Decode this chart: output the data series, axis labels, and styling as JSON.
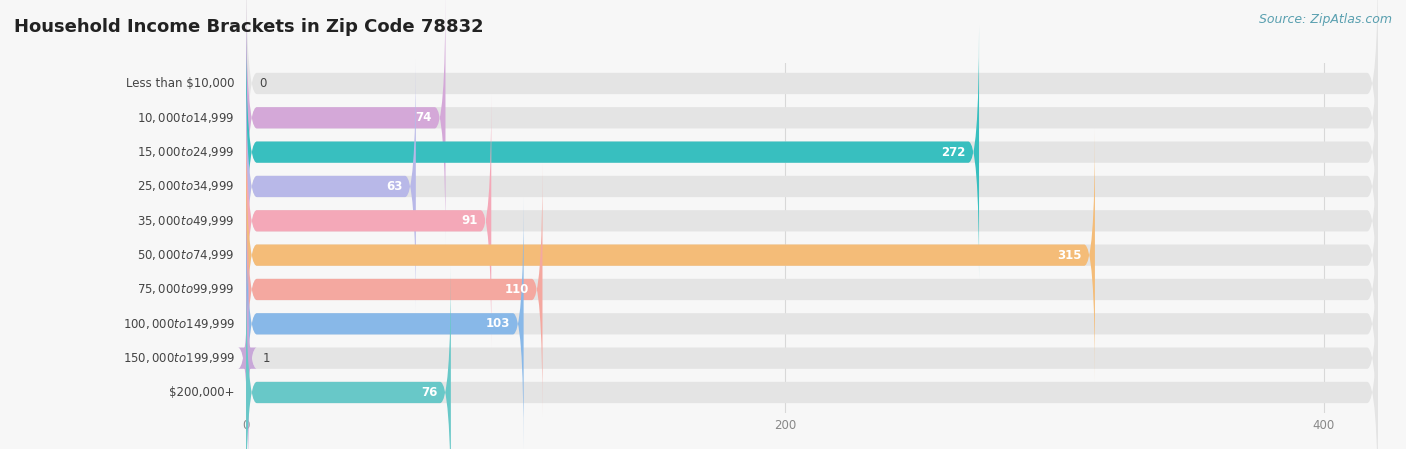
{
  "title": "Household Income Brackets in Zip Code 78832",
  "source": "Source: ZipAtlas.com",
  "categories": [
    "Less than $10,000",
    "$10,000 to $14,999",
    "$15,000 to $24,999",
    "$25,000 to $34,999",
    "$35,000 to $49,999",
    "$50,000 to $74,999",
    "$75,000 to $99,999",
    "$100,000 to $149,999",
    "$150,000 to $199,999",
    "$200,000+"
  ],
  "values": [
    0,
    74,
    272,
    63,
    91,
    315,
    110,
    103,
    1,
    76
  ],
  "bar_colors": [
    "#aac8e8",
    "#d4a8d8",
    "#38bfbf",
    "#b8b8e8",
    "#f4a8b8",
    "#f4bc78",
    "#f4a8a0",
    "#88b8e8",
    "#c8a8d8",
    "#68c8c8"
  ],
  "bar_height": 0.62,
  "xlim_max": 420,
  "xticks": [
    0,
    200,
    400
  ],
  "background_color": "#f7f7f7",
  "bar_bg_color": "#e4e4e4",
  "title_fontsize": 13,
  "label_fontsize": 8.5,
  "value_fontsize": 8.5,
  "source_fontsize": 9,
  "source_color": "#5aa0b0",
  "label_color": "#444444",
  "tick_color": "#888888",
  "grid_color": "#d8d8d8",
  "white_label_threshold": 25
}
